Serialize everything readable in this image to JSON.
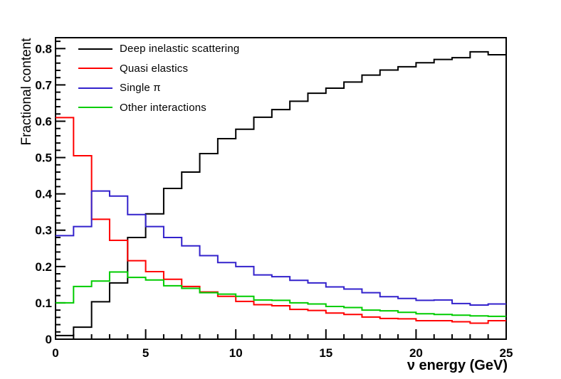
{
  "chart_data": {
    "type": "step-histogram",
    "title": "",
    "xlabel": "ν energy (GeV)",
    "ylabel": "Fractional content",
    "xlim": [
      0,
      25
    ],
    "ylim": [
      0,
      0.83
    ],
    "bin_width": 1,
    "x_major_ticks": [
      0,
      5,
      10,
      15,
      20,
      25
    ],
    "x_minor_step": 1,
    "y_major_ticks": [
      0,
      0.1,
      0.2,
      0.3,
      0.4,
      0.5,
      0.6,
      0.7,
      0.8
    ],
    "y_minor_step": 0.02,
    "grid": false,
    "legend_position": "top-left",
    "background": "#ffffff",
    "frame_color": "#000000",
    "series": [
      {
        "id": "deep-inelastic-scattering",
        "name": "Deep inelastic scattering",
        "color": "#000000",
        "values": [
          0.01,
          0.033,
          0.103,
          0.155,
          0.28,
          0.345,
          0.415,
          0.46,
          0.511,
          0.552,
          0.578,
          0.611,
          0.632,
          0.655,
          0.677,
          0.691,
          0.708,
          0.727,
          0.741,
          0.75,
          0.761,
          0.77,
          0.775,
          0.791,
          0.783
        ]
      },
      {
        "id": "quasi-elastics",
        "name": "Quasi elastics",
        "color": "#ff0000",
        "values": [
          0.61,
          0.505,
          0.33,
          0.272,
          0.216,
          0.186,
          0.165,
          0.145,
          0.13,
          0.118,
          0.104,
          0.095,
          0.092,
          0.082,
          0.079,
          0.072,
          0.068,
          0.061,
          0.057,
          0.056,
          0.051,
          0.051,
          0.048,
          0.044,
          0.051
        ]
      },
      {
        "id": "single-pi",
        "name": "Single π",
        "color": "#3322cc",
        "values": [
          0.285,
          0.31,
          0.408,
          0.394,
          0.343,
          0.31,
          0.28,
          0.257,
          0.23,
          0.211,
          0.2,
          0.177,
          0.172,
          0.162,
          0.155,
          0.144,
          0.138,
          0.128,
          0.117,
          0.112,
          0.107,
          0.108,
          0.098,
          0.094,
          0.097
        ]
      },
      {
        "id": "other-interactions",
        "name": "Other interactions",
        "color": "#00cc00",
        "values": [
          0.1,
          0.145,
          0.16,
          0.185,
          0.17,
          0.163,
          0.147,
          0.14,
          0.128,
          0.124,
          0.118,
          0.108,
          0.107,
          0.1,
          0.097,
          0.09,
          0.087,
          0.08,
          0.078,
          0.074,
          0.07,
          0.068,
          0.066,
          0.064,
          0.063
        ]
      }
    ]
  }
}
